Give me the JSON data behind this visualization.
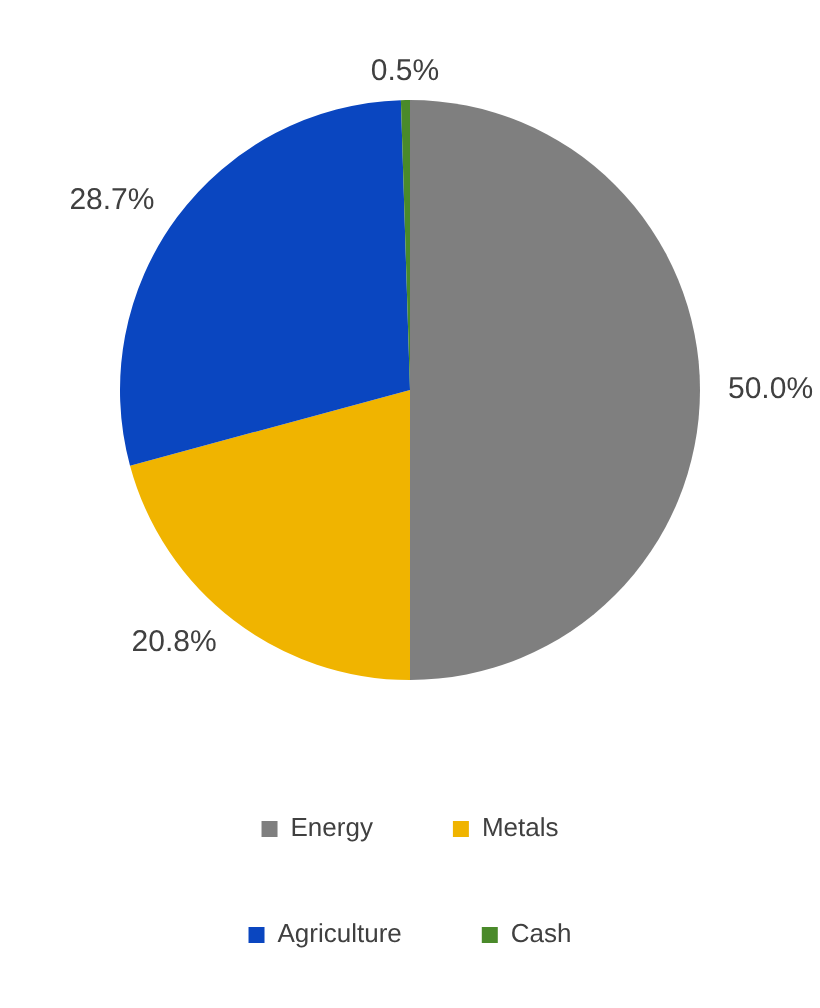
{
  "chart_data": {
    "type": "pie",
    "categories": [
      "Energy",
      "Metals",
      "Agriculture",
      "Cash"
    ],
    "values": [
      50.0,
      20.8,
      28.7,
      0.5
    ],
    "colors": [
      "#7f7f7f",
      "#f0b400",
      "#0a46c0",
      "#4a8a2a"
    ],
    "value_labels": [
      "50.0%",
      "20.8%",
      "28.7%",
      "0.5%"
    ],
    "legend": "bottom"
  }
}
